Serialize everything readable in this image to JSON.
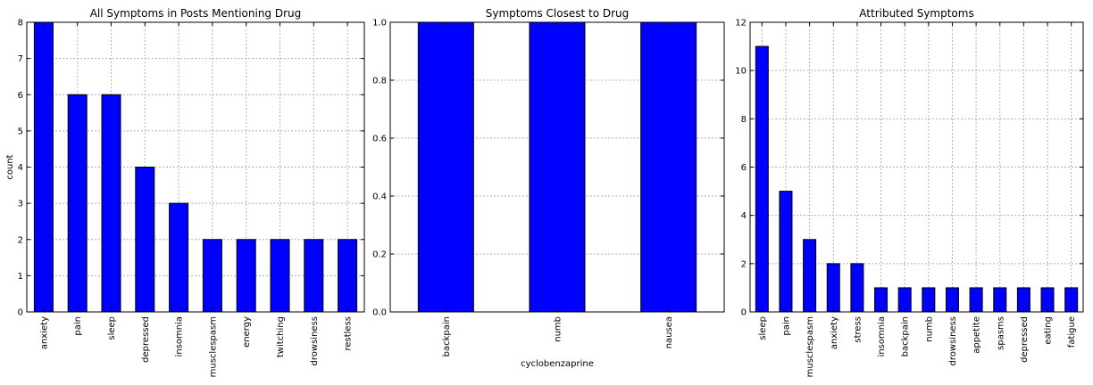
{
  "chart_data": [
    {
      "type": "bar",
      "title": "All Symptoms in Posts Mentioning Drug",
      "xlabel": "",
      "ylabel": "count",
      "categories": [
        "anxiety",
        "pain",
        "sleep",
        "depressed",
        "insomnia",
        "musclespasm",
        "energy",
        "twitching",
        "drowsiness",
        "restless"
      ],
      "values": [
        8,
        6,
        6,
        4,
        3,
        2,
        2,
        2,
        2,
        2
      ],
      "ylim": [
        0,
        8
      ],
      "yticks": [
        0,
        1,
        2,
        3,
        4,
        5,
        6,
        7,
        8
      ],
      "ytick_labels": [
        "0",
        "1",
        "2",
        "3",
        "4",
        "5",
        "6",
        "7",
        "8"
      ],
      "grid": true,
      "color": "#0000ff"
    },
    {
      "type": "bar",
      "title": "Symptoms Closest to Drug",
      "xlabel": "cyclobenzaprine",
      "ylabel": "",
      "categories": [
        "backpain",
        "numb",
        "nausea"
      ],
      "values": [
        1,
        1,
        1
      ],
      "ylim": [
        0,
        1
      ],
      "yticks": [
        0,
        0.2,
        0.4,
        0.6,
        0.8,
        1.0
      ],
      "ytick_labels": [
        "0.0",
        "0.2",
        "0.4",
        "0.6",
        "0.8",
        "1.0"
      ],
      "grid": true,
      "color": "#0000ff"
    },
    {
      "type": "bar",
      "title": "Attributed Symptoms",
      "xlabel": "",
      "ylabel": "",
      "categories": [
        "sleep",
        "pain",
        "musclespasm",
        "anxiety",
        "stress",
        "insomnia",
        "backpain",
        "numb",
        "drowsiness",
        "appetite",
        "spasms",
        "depressed",
        "eating",
        "fatigue"
      ],
      "values": [
        11,
        5,
        3,
        2,
        2,
        1,
        1,
        1,
        1,
        1,
        1,
        1,
        1,
        1
      ],
      "ylim": [
        0,
        12
      ],
      "yticks": [
        0,
        2,
        4,
        6,
        8,
        10,
        12
      ],
      "ytick_labels": [
        "0",
        "2",
        "4",
        "6",
        "8",
        "10",
        "12"
      ],
      "grid": true,
      "color": "#0000ff"
    }
  ]
}
